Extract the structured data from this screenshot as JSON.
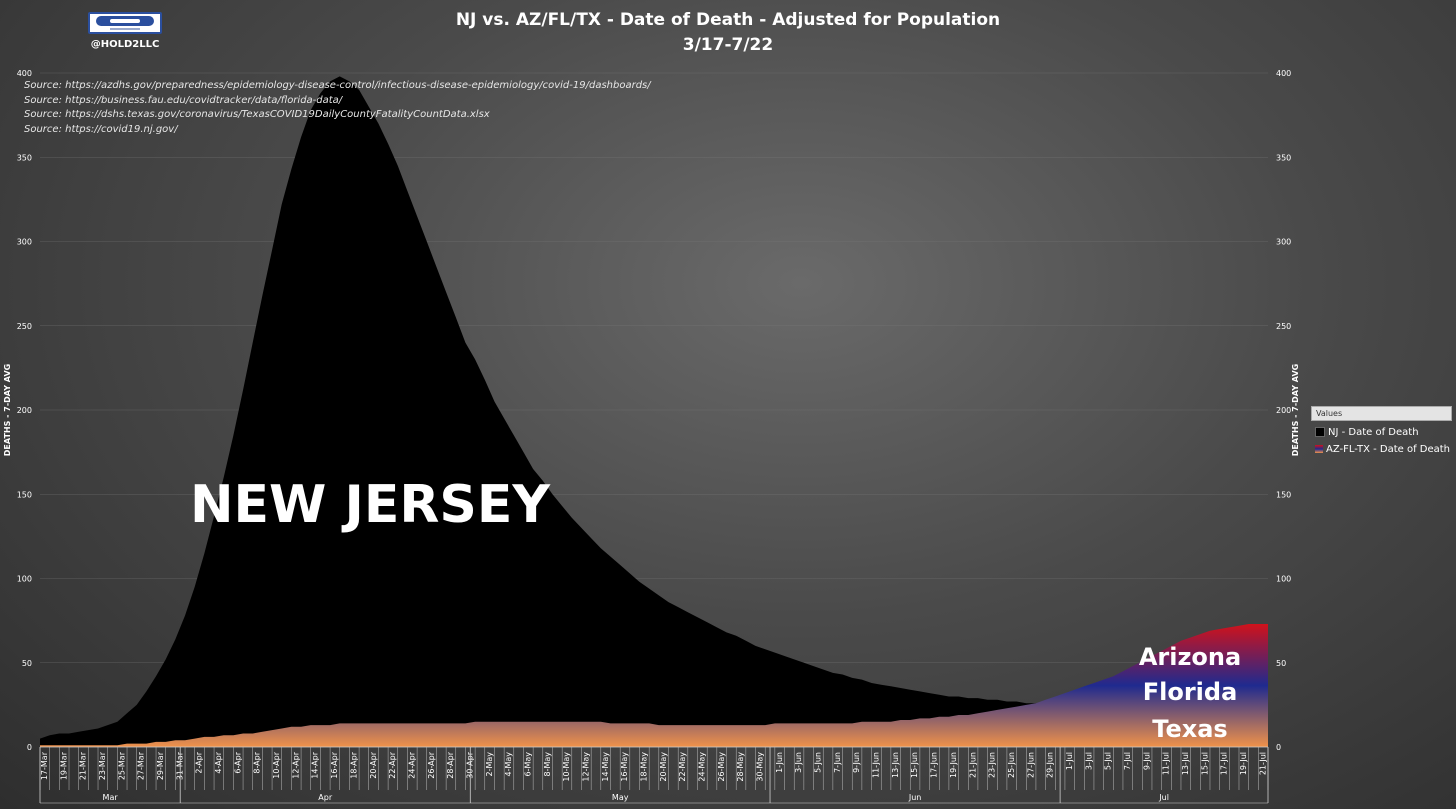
{
  "branding": {
    "handle": "@HOLD2LLC"
  },
  "sources": [
    "Source: https://azdhs.gov/preparedness/epidemiology-disease-control/infectious-disease-epidemiology/covid-19/dashboards/",
    "Source: https://business.fau.edu/covidtracker/data/florida-data/",
    "Source: https://dshs.texas.gov/coronavirus/TexasCOVID19DailyCountyFatalityCountData.xlsx",
    "Source: https://covid19.nj.gov/"
  ],
  "colors": {
    "nj": "#000000",
    "az_top": "#d0121b",
    "az_mid": "#1f2a8f",
    "az_bottom": "#f0924a"
  },
  "chart_data": {
    "type": "area",
    "title": "NJ vs. AZ/FL/TX - Date of Death - Adjusted for Population",
    "subtitle": "3/17-7/22",
    "ylabel": "DEATHS - 7-DAY AVG",
    "ylim": [
      0,
      400
    ],
    "yticks": [
      0,
      50,
      100,
      150,
      200,
      250,
      300,
      350,
      400
    ],
    "legend_title": "Values",
    "legend_position": "right",
    "annotations": {
      "nj": "NEW JERSEY",
      "az": [
        "Arizona",
        "Florida",
        "Texas"
      ]
    },
    "month_labels": [
      "Mar",
      "Apr",
      "May",
      "Jun",
      "Jul"
    ],
    "x": [
      "17-Mar",
      "18-Mar",
      "19-Mar",
      "20-Mar",
      "21-Mar",
      "22-Mar",
      "23-Mar",
      "24-Mar",
      "25-Mar",
      "26-Mar",
      "27-Mar",
      "28-Mar",
      "29-Mar",
      "30-Mar",
      "31-Mar",
      "1-Apr",
      "2-Apr",
      "3-Apr",
      "4-Apr",
      "5-Apr",
      "6-Apr",
      "7-Apr",
      "8-Apr",
      "9-Apr",
      "10-Apr",
      "11-Apr",
      "12-Apr",
      "13-Apr",
      "14-Apr",
      "15-Apr",
      "16-Apr",
      "17-Apr",
      "18-Apr",
      "19-Apr",
      "20-Apr",
      "21-Apr",
      "22-Apr",
      "23-Apr",
      "24-Apr",
      "25-Apr",
      "26-Apr",
      "27-Apr",
      "28-Apr",
      "29-Apr",
      "30-Apr",
      "1-May",
      "2-May",
      "3-May",
      "4-May",
      "5-May",
      "6-May",
      "7-May",
      "8-May",
      "9-May",
      "10-May",
      "11-May",
      "12-May",
      "13-May",
      "14-May",
      "15-May",
      "16-May",
      "17-May",
      "18-May",
      "19-May",
      "20-May",
      "21-May",
      "22-May",
      "23-May",
      "24-May",
      "25-May",
      "26-May",
      "27-May",
      "28-May",
      "29-May",
      "30-May",
      "31-May",
      "1-Jun",
      "2-Jun",
      "3-Jun",
      "4-Jun",
      "5-Jun",
      "6-Jun",
      "7-Jun",
      "8-Jun",
      "9-Jun",
      "10-Jun",
      "11-Jun",
      "12-Jun",
      "13-Jun",
      "14-Jun",
      "15-Jun",
      "16-Jun",
      "17-Jun",
      "18-Jun",
      "19-Jun",
      "20-Jun",
      "21-Jun",
      "22-Jun",
      "23-Jun",
      "24-Jun",
      "25-Jun",
      "26-Jun",
      "27-Jun",
      "28-Jun",
      "29-Jun",
      "30-Jun",
      "1-Jul",
      "2-Jul",
      "3-Jul",
      "4-Jul",
      "5-Jul",
      "6-Jul",
      "7-Jul",
      "8-Jul",
      "9-Jul",
      "10-Jul",
      "11-Jul",
      "12-Jul",
      "13-Jul",
      "14-Jul",
      "15-Jul",
      "16-Jul",
      "17-Jul",
      "18-Jul",
      "19-Jul",
      "20-Jul",
      "21-Jul",
      "22-Jul"
    ],
    "series": [
      {
        "name": "NJ - Date of Death",
        "values": [
          5,
          7,
          8,
          8,
          9,
          10,
          11,
          13,
          15,
          20,
          25,
          33,
          42,
          52,
          64,
          78,
          95,
          115,
          137,
          160,
          185,
          212,
          240,
          268,
          295,
          322,
          343,
          362,
          378,
          388,
          395,
          398,
          395,
          390,
          380,
          370,
          358,
          345,
          330,
          315,
          300,
          285,
          270,
          255,
          240,
          230,
          218,
          205,
          195,
          185,
          175,
          165,
          158,
          150,
          143,
          136,
          130,
          124,
          118,
          113,
          108,
          103,
          98,
          94,
          90,
          86,
          83,
          80,
          77,
          74,
          71,
          68,
          66,
          63,
          60,
          58,
          56,
          54,
          52,
          50,
          48,
          46,
          44,
          43,
          41,
          40,
          38,
          37,
          36,
          35,
          34,
          33,
          32,
          31,
          30,
          30,
          29,
          29,
          28,
          28,
          27,
          27,
          26,
          26,
          25,
          25,
          24,
          24,
          23,
          23,
          22,
          22,
          21,
          21,
          21,
          20,
          20,
          20,
          19,
          19,
          19,
          18,
          18,
          18,
          18,
          17,
          17,
          17
        ]
      },
      {
        "name": "AZ-FL-TX - Date of Death",
        "values": [
          1,
          1,
          1,
          1,
          1,
          1,
          1,
          1,
          1,
          2,
          2,
          2,
          3,
          3,
          4,
          4,
          5,
          6,
          6,
          7,
          7,
          8,
          8,
          9,
          10,
          11,
          12,
          12,
          13,
          13,
          13,
          14,
          14,
          14,
          14,
          14,
          14,
          14,
          14,
          14,
          14,
          14,
          14,
          14,
          14,
          15,
          15,
          15,
          15,
          15,
          15,
          15,
          15,
          15,
          15,
          15,
          15,
          15,
          15,
          14,
          14,
          14,
          14,
          14,
          13,
          13,
          13,
          13,
          13,
          13,
          13,
          13,
          13,
          13,
          13,
          13,
          14,
          14,
          14,
          14,
          14,
          14,
          14,
          14,
          14,
          15,
          15,
          15,
          15,
          16,
          16,
          17,
          17,
          18,
          18,
          19,
          19,
          20,
          21,
          22,
          23,
          24,
          25,
          26,
          28,
          30,
          32,
          34,
          36,
          38,
          40,
          42,
          45,
          48,
          51,
          54,
          57,
          60,
          63,
          65,
          67,
          69,
          70,
          71,
          72,
          73,
          73,
          73
        ]
      }
    ]
  }
}
